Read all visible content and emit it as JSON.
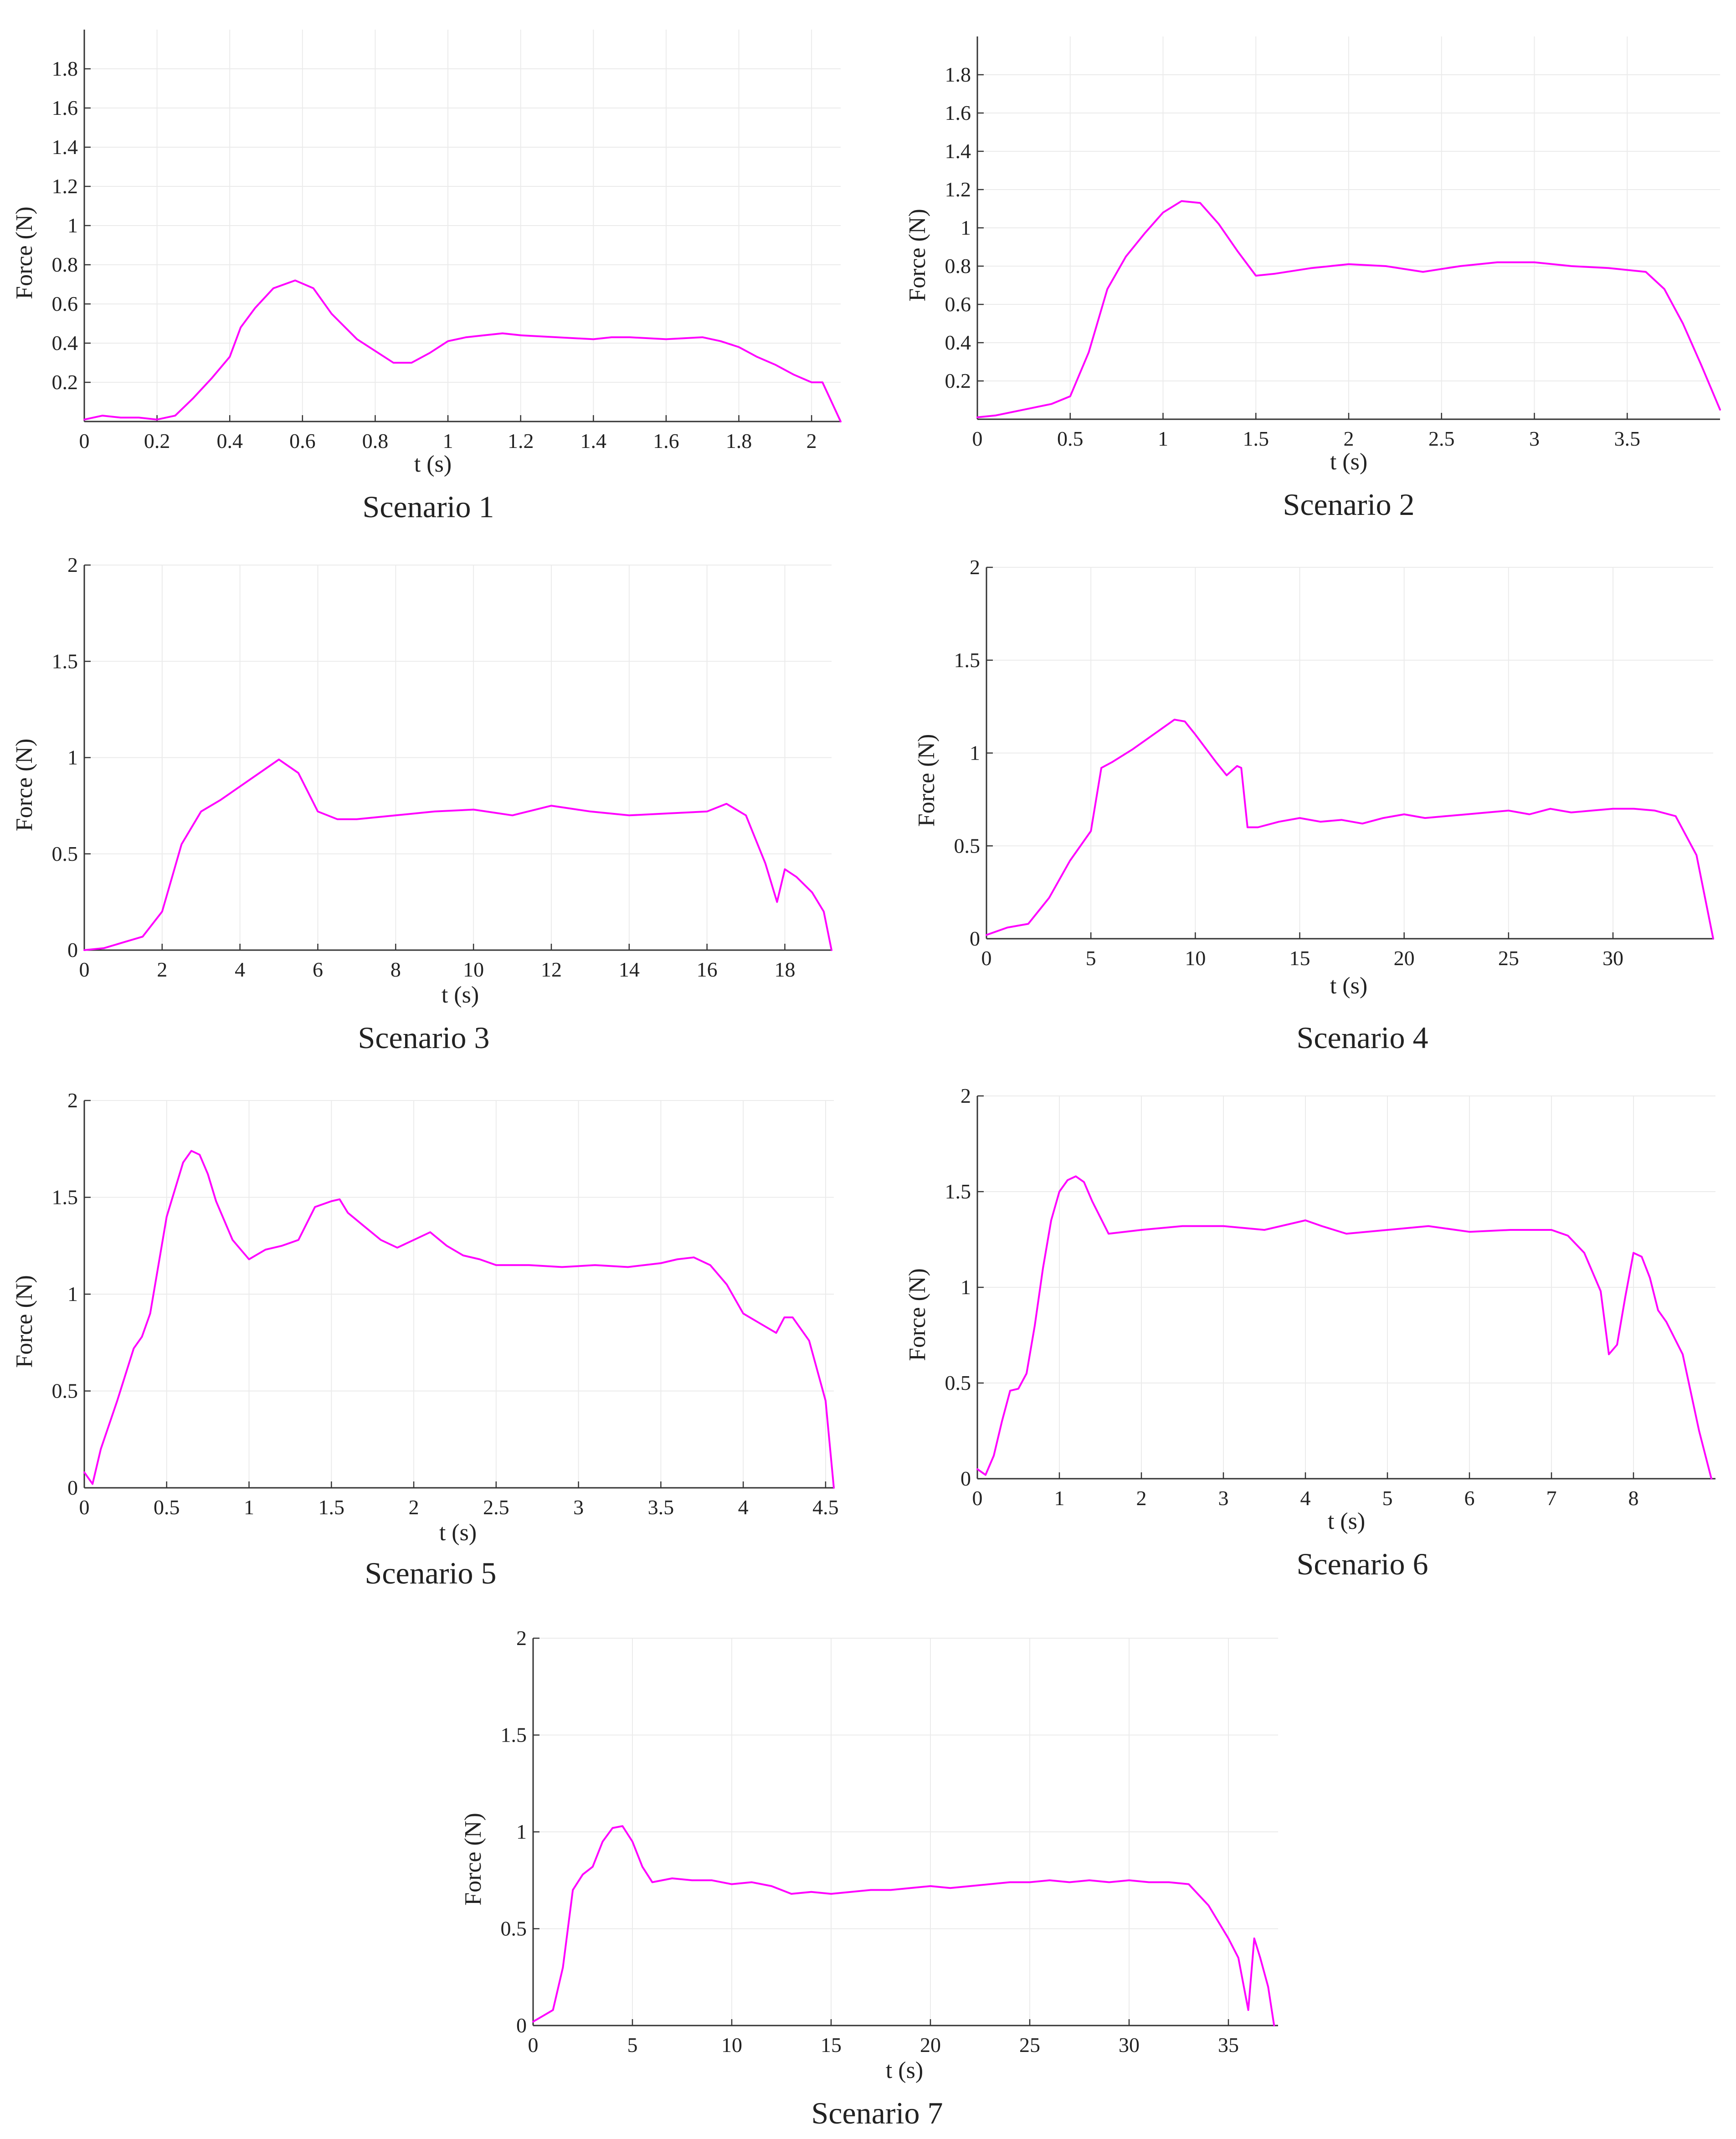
{
  "style": {
    "line_color": "#ff00ff",
    "axis_color": "#333333",
    "grid_color": "#ebebeb",
    "background": "#ffffff"
  },
  "chart_data": [
    {
      "type": "line",
      "caption": "Scenario 1",
      "xlabel": "t (s)",
      "ylabel": "Force (N)",
      "xlim": [
        0,
        2.08
      ],
      "ylim": [
        0,
        2
      ],
      "xticks": [
        0,
        0.2,
        0.4,
        0.6,
        0.8,
        1,
        1.2,
        1.4,
        1.6,
        1.8,
        2
      ],
      "xtick_labels": [
        "0",
        "0.2",
        "0.4",
        "0.6",
        "0.8",
        "1",
        "1.2",
        "1.4",
        "1.6",
        "1.8",
        "2"
      ],
      "yticks": [
        0.2,
        0.4,
        0.6,
        0.8,
        1,
        1.2,
        1.4,
        1.6,
        1.8
      ],
      "ytick_labels": [
        "0.2",
        "0.4",
        "0.6",
        "0.8",
        "1",
        "1.2",
        "1.4",
        "1.6",
        "1.8"
      ],
      "grid": true,
      "series": [
        {
          "x": [
            0,
            0.05,
            0.1,
            0.15,
            0.2,
            0.25,
            0.3,
            0.35,
            0.4,
            0.43,
            0.47,
            0.52,
            0.58,
            0.63,
            0.68,
            0.75,
            0.85,
            0.9,
            0.95,
            1.0,
            1.05,
            1.1,
            1.15,
            1.2,
            1.3,
            1.4,
            1.45,
            1.5,
            1.6,
            1.7,
            1.75,
            1.8,
            1.85,
            1.9,
            1.95,
            2.0,
            2.03,
            2.05,
            2.08
          ],
          "y": [
            0.01,
            0.03,
            0.02,
            0.02,
            0.01,
            0.03,
            0.12,
            0.22,
            0.33,
            0.48,
            0.58,
            0.68,
            0.72,
            0.68,
            0.55,
            0.42,
            0.3,
            0.3,
            0.35,
            0.41,
            0.43,
            0.44,
            0.45,
            0.44,
            0.43,
            0.42,
            0.43,
            0.43,
            0.42,
            0.43,
            0.41,
            0.38,
            0.33,
            0.29,
            0.24,
            0.2,
            0.2,
            0.12,
            0.0
          ]
        }
      ]
    },
    {
      "type": "line",
      "caption": "Scenario 2",
      "xlabel": "t (s)",
      "ylabel": "Force (N)",
      "xlim": [
        0,
        4.0
      ],
      "ylim": [
        0,
        2
      ],
      "xticks": [
        0,
        0.5,
        1,
        1.5,
        2,
        2.5,
        3,
        3.5
      ],
      "xtick_labels": [
        "0",
        "0.5",
        "1",
        "1.5",
        "2",
        "2.5",
        "3",
        "3.5"
      ],
      "yticks": [
        0.2,
        0.4,
        0.6,
        0.8,
        1,
        1.2,
        1.4,
        1.6,
        1.8
      ],
      "ytick_labels": [
        "0.2",
        "0.4",
        "0.6",
        "0.8",
        "1",
        "1.2",
        "1.4",
        "1.6",
        "1.8"
      ],
      "grid": true,
      "series": [
        {
          "x": [
            0,
            0.1,
            0.2,
            0.3,
            0.4,
            0.5,
            0.6,
            0.7,
            0.8,
            0.9,
            1.0,
            1.1,
            1.2,
            1.3,
            1.4,
            1.5,
            1.6,
            1.8,
            2.0,
            2.2,
            2.4,
            2.6,
            2.8,
            3.0,
            3.2,
            3.4,
            3.6,
            3.7,
            3.8,
            3.9,
            4.0
          ],
          "y": [
            0.01,
            0.02,
            0.04,
            0.06,
            0.08,
            0.12,
            0.35,
            0.68,
            0.85,
            0.97,
            1.08,
            1.14,
            1.13,
            1.02,
            0.88,
            0.75,
            0.76,
            0.79,
            0.81,
            0.8,
            0.77,
            0.8,
            0.82,
            0.82,
            0.8,
            0.79,
            0.77,
            0.68,
            0.5,
            0.28,
            0.05
          ]
        }
      ]
    },
    {
      "type": "line",
      "caption": "Scenario 3",
      "xlabel": "t (s)",
      "ylabel": "Force (N)",
      "xlim": [
        0,
        19.2
      ],
      "ylim": [
        0,
        2
      ],
      "xticks": [
        0,
        2,
        4,
        6,
        8,
        10,
        12,
        14,
        16,
        18
      ],
      "xtick_labels": [
        "0",
        "2",
        "4",
        "6",
        "8",
        "10",
        "12",
        "14",
        "16",
        "18"
      ],
      "yticks": [
        0,
        0.5,
        1,
        1.5,
        2
      ],
      "ytick_labels": [
        "0",
        "0.5",
        "1",
        "1.5",
        "2"
      ],
      "grid": true,
      "series": [
        {
          "x": [
            0,
            0.5,
            1,
            1.5,
            2,
            2.5,
            3,
            3.5,
            4,
            4.5,
            5,
            5.5,
            6,
            6.5,
            7,
            8,
            9,
            10,
            11,
            12,
            13,
            14,
            15,
            16,
            16.5,
            17,
            17.5,
            17.8,
            18,
            18.3,
            18.7,
            19,
            19.2
          ],
          "y": [
            0.0,
            0.01,
            0.04,
            0.07,
            0.2,
            0.55,
            0.72,
            0.78,
            0.85,
            0.92,
            0.99,
            0.92,
            0.72,
            0.68,
            0.68,
            0.7,
            0.72,
            0.73,
            0.7,
            0.75,
            0.72,
            0.7,
            0.71,
            0.72,
            0.76,
            0.7,
            0.45,
            0.25,
            0.42,
            0.38,
            0.3,
            0.2,
            0.0
          ]
        }
      ]
    },
    {
      "type": "line",
      "caption": "Scenario 4",
      "xlabel": "t (s)",
      "ylabel": "Force (N)",
      "xlim": [
        0,
        34.8
      ],
      "ylim": [
        0,
        2
      ],
      "xticks": [
        0,
        5,
        10,
        15,
        20,
        25,
        30
      ],
      "xtick_labels": [
        "0",
        "5",
        "10",
        "15",
        "20",
        "25",
        "30"
      ],
      "yticks": [
        0,
        0.5,
        1,
        1.5,
        2
      ],
      "ytick_labels": [
        "0",
        "0.5",
        "1",
        "1.5",
        "2"
      ],
      "grid": true,
      "series": [
        {
          "x": [
            0,
            1,
            2,
            3,
            4,
            5,
            5.5,
            6,
            7,
            8,
            9,
            9.5,
            10,
            11,
            11.5,
            12,
            12.2,
            12.5,
            13,
            14,
            15,
            16,
            17,
            18,
            19,
            20,
            21,
            22,
            23,
            24,
            25,
            26,
            27,
            28,
            29,
            30,
            31,
            32,
            33,
            34,
            34.8
          ],
          "y": [
            0.02,
            0.06,
            0.08,
            0.22,
            0.42,
            0.58,
            0.92,
            0.95,
            1.02,
            1.1,
            1.18,
            1.17,
            1.1,
            0.95,
            0.88,
            0.93,
            0.92,
            0.6,
            0.6,
            0.63,
            0.65,
            0.63,
            0.64,
            0.62,
            0.65,
            0.67,
            0.65,
            0.66,
            0.67,
            0.68,
            0.69,
            0.67,
            0.7,
            0.68,
            0.69,
            0.7,
            0.7,
            0.69,
            0.66,
            0.45,
            0.0
          ]
        }
      ]
    },
    {
      "type": "line",
      "caption": "Scenario 5",
      "xlabel": "t (s)",
      "ylabel": "Force (N)",
      "xlim": [
        0,
        4.55
      ],
      "ylim": [
        0,
        2
      ],
      "xticks": [
        0,
        0.5,
        1,
        1.5,
        2,
        2.5,
        3,
        3.5,
        4,
        4.5
      ],
      "xtick_labels": [
        "0",
        "0.5",
        "1",
        "1.5",
        "2",
        "2.5",
        "3",
        "3.5",
        "4",
        "4.5"
      ],
      "yticks": [
        0,
        0.5,
        1,
        1.5,
        2
      ],
      "ytick_labels": [
        "0",
        "0.5",
        "1",
        "1.5",
        "2"
      ],
      "grid": true,
      "series": [
        {
          "x": [
            0,
            0.05,
            0.1,
            0.2,
            0.3,
            0.35,
            0.4,
            0.5,
            0.6,
            0.65,
            0.7,
            0.75,
            0.8,
            0.9,
            1.0,
            1.1,
            1.2,
            1.3,
            1.4,
            1.5,
            1.55,
            1.6,
            1.7,
            1.8,
            1.9,
            2.0,
            2.05,
            2.1,
            2.2,
            2.3,
            2.4,
            2.5,
            2.7,
            2.9,
            3.1,
            3.3,
            3.5,
            3.6,
            3.7,
            3.8,
            3.9,
            4.0,
            4.1,
            4.2,
            4.25,
            4.3,
            4.35,
            4.4,
            4.5,
            4.55
          ],
          "y": [
            0.08,
            0.02,
            0.2,
            0.45,
            0.72,
            0.78,
            0.9,
            1.4,
            1.68,
            1.74,
            1.72,
            1.62,
            1.48,
            1.28,
            1.18,
            1.23,
            1.25,
            1.28,
            1.45,
            1.48,
            1.49,
            1.42,
            1.35,
            1.28,
            1.24,
            1.28,
            1.3,
            1.32,
            1.25,
            1.2,
            1.18,
            1.15,
            1.15,
            1.14,
            1.15,
            1.14,
            1.16,
            1.18,
            1.19,
            1.15,
            1.05,
            0.9,
            0.85,
            0.8,
            0.88,
            0.88,
            0.82,
            0.76,
            0.45,
            0.0
          ]
        }
      ]
    },
    {
      "type": "line",
      "caption": "Scenario 6",
      "xlabel": "t (s)",
      "ylabel": "Force (N)",
      "xlim": [
        0,
        9.0
      ],
      "ylim": [
        0,
        2
      ],
      "xticks": [
        0,
        1,
        2,
        3,
        4,
        5,
        6,
        7,
        8
      ],
      "xtick_labels": [
        "0",
        "1",
        "2",
        "3",
        "4",
        "5",
        "6",
        "7",
        "8"
      ],
      "yticks": [
        0,
        0.5,
        1,
        1.5,
        2
      ],
      "ytick_labels": [
        "0",
        "0.5",
        "1",
        "1.5",
        "2"
      ],
      "grid": true,
      "series": [
        {
          "x": [
            0,
            0.1,
            0.2,
            0.3,
            0.4,
            0.5,
            0.6,
            0.7,
            0.8,
            0.9,
            1.0,
            1.1,
            1.2,
            1.3,
            1.4,
            1.6,
            2.0,
            2.5,
            3.0,
            3.5,
            4.0,
            4.2,
            4.5,
            5.0,
            5.5,
            6.0,
            6.5,
            7.0,
            7.2,
            7.4,
            7.6,
            7.7,
            7.8,
            7.9,
            8.0,
            8.1,
            8.2,
            8.3,
            8.4,
            8.6,
            8.8,
            8.95
          ],
          "y": [
            0.05,
            0.02,
            0.12,
            0.3,
            0.46,
            0.47,
            0.55,
            0.8,
            1.1,
            1.35,
            1.5,
            1.56,
            1.58,
            1.55,
            1.45,
            1.28,
            1.3,
            1.32,
            1.32,
            1.3,
            1.35,
            1.32,
            1.28,
            1.3,
            1.32,
            1.29,
            1.3,
            1.3,
            1.27,
            1.18,
            0.98,
            0.65,
            0.7,
            0.95,
            1.18,
            1.16,
            1.05,
            0.88,
            0.82,
            0.65,
            0.25,
            0.0
          ]
        }
      ]
    },
    {
      "type": "line",
      "caption": "Scenario 7",
      "xlabel": "t (s)",
      "ylabel": "Force (N)",
      "xlim": [
        0,
        37.5
      ],
      "ylim": [
        0,
        2
      ],
      "xticks": [
        0,
        5,
        10,
        15,
        20,
        25,
        30,
        35
      ],
      "xtick_labels": [
        "0",
        "5",
        "10",
        "15",
        "20",
        "25",
        "30",
        "35"
      ],
      "yticks": [
        0,
        0.5,
        1,
        1.5,
        2
      ],
      "ytick_labels": [
        "0",
        "0.5",
        "1",
        "1.5",
        "2"
      ],
      "grid": true,
      "series": [
        {
          "x": [
            0,
            0.5,
            1,
            1.5,
            2,
            2.5,
            3,
            3.5,
            4,
            4.5,
            5,
            5.5,
            6,
            7,
            8,
            9,
            10,
            11,
            12,
            13,
            14,
            15,
            16,
            17,
            18,
            19,
            20,
            21,
            22,
            23,
            24,
            25,
            26,
            27,
            28,
            29,
            30,
            31,
            32,
            33,
            34,
            35,
            35.5,
            36,
            36.3,
            36.6,
            37,
            37.3
          ],
          "y": [
            0.02,
            0.05,
            0.08,
            0.3,
            0.7,
            0.78,
            0.82,
            0.95,
            1.02,
            1.03,
            0.95,
            0.82,
            0.74,
            0.76,
            0.75,
            0.75,
            0.73,
            0.74,
            0.72,
            0.68,
            0.69,
            0.68,
            0.69,
            0.7,
            0.7,
            0.71,
            0.72,
            0.71,
            0.72,
            0.73,
            0.74,
            0.74,
            0.75,
            0.74,
            0.75,
            0.74,
            0.75,
            0.74,
            0.74,
            0.73,
            0.62,
            0.45,
            0.35,
            0.08,
            0.45,
            0.35,
            0.2,
            0.0
          ]
        }
      ]
    }
  ]
}
